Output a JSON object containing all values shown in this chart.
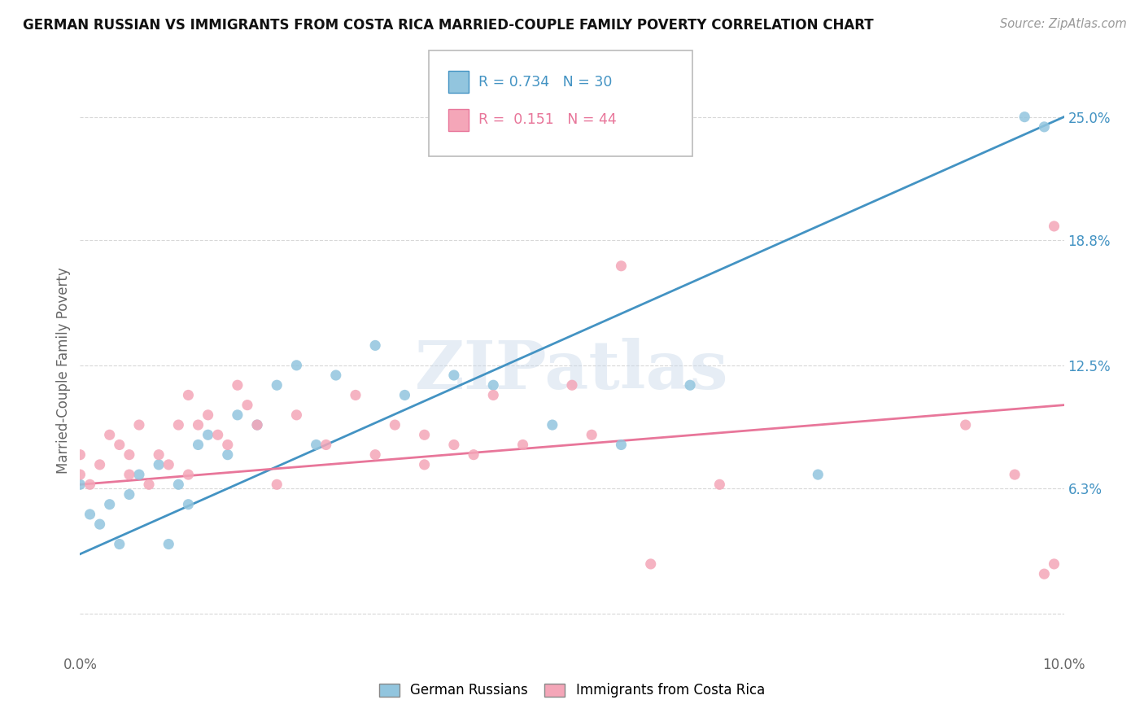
{
  "title": "GERMAN RUSSIAN VS IMMIGRANTS FROM COSTA RICA MARRIED-COUPLE FAMILY POVERTY CORRELATION CHART",
  "source": "Source: ZipAtlas.com",
  "ylabel": "Married-Couple Family Poverty",
  "xlim": [
    0.0,
    10.0
  ],
  "ylim": [
    -2.0,
    26.5
  ],
  "ytick_positions": [
    0.0,
    6.3,
    12.5,
    18.8,
    25.0
  ],
  "ytick_labels": [
    "",
    "6.3%",
    "12.5%",
    "18.8%",
    "25.0%"
  ],
  "xtick_positions": [
    0.0,
    10.0
  ],
  "xtick_labels": [
    "0.0%",
    "10.0%"
  ],
  "legend_labels": [
    "German Russians",
    "Immigrants from Costa Rica"
  ],
  "R_blue": 0.734,
  "N_blue": 30,
  "R_pink": 0.151,
  "N_pink": 44,
  "blue_color": "#92c5de",
  "pink_color": "#f4a6b8",
  "blue_line_color": "#4393c3",
  "pink_line_color": "#e8769a",
  "watermark_text": "ZIPatlas",
  "blue_scatter_x": [
    0.0,
    0.1,
    0.2,
    0.3,
    0.4,
    0.5,
    0.6,
    0.8,
    0.9,
    1.0,
    1.1,
    1.2,
    1.3,
    1.5,
    1.6,
    1.8,
    2.0,
    2.2,
    2.4,
    2.6,
    3.0,
    3.3,
    3.8,
    4.2,
    4.8,
    5.5,
    6.2,
    7.5,
    9.6,
    9.8
  ],
  "blue_scatter_y": [
    6.5,
    5.0,
    4.5,
    5.5,
    3.5,
    6.0,
    7.0,
    7.5,
    3.5,
    6.5,
    5.5,
    8.5,
    9.0,
    8.0,
    10.0,
    9.5,
    11.5,
    12.5,
    8.5,
    12.0,
    13.5,
    11.0,
    12.0,
    11.5,
    9.5,
    8.5,
    11.5,
    7.0,
    25.0,
    24.5
  ],
  "pink_scatter_x": [
    0.0,
    0.0,
    0.1,
    0.2,
    0.3,
    0.4,
    0.5,
    0.5,
    0.6,
    0.7,
    0.8,
    0.9,
    1.0,
    1.1,
    1.1,
    1.2,
    1.3,
    1.4,
    1.5,
    1.6,
    1.7,
    1.8,
    2.0,
    2.2,
    2.5,
    2.8,
    3.0,
    3.2,
    3.5,
    3.5,
    3.8,
    4.0,
    4.2,
    4.5,
    5.0,
    5.2,
    5.5,
    5.8,
    6.5,
    9.0,
    9.5,
    9.8,
    9.9,
    9.9
  ],
  "pink_scatter_y": [
    7.0,
    8.0,
    6.5,
    7.5,
    9.0,
    8.5,
    7.0,
    8.0,
    9.5,
    6.5,
    8.0,
    7.5,
    9.5,
    7.0,
    11.0,
    9.5,
    10.0,
    9.0,
    8.5,
    11.5,
    10.5,
    9.5,
    6.5,
    10.0,
    8.5,
    11.0,
    8.0,
    9.5,
    7.5,
    9.0,
    8.5,
    8.0,
    11.0,
    8.5,
    11.5,
    9.0,
    17.5,
    2.5,
    6.5,
    9.5,
    7.0,
    2.0,
    19.5,
    2.5
  ],
  "blue_line_x0": 0.0,
  "blue_line_y0": 3.0,
  "blue_line_x1": 10.0,
  "blue_line_y1": 25.0,
  "pink_line_x0": 0.0,
  "pink_line_y0": 6.5,
  "pink_line_x1": 10.0,
  "pink_line_y1": 10.5,
  "grid_color": "#d8d8d8",
  "background_color": "#ffffff"
}
